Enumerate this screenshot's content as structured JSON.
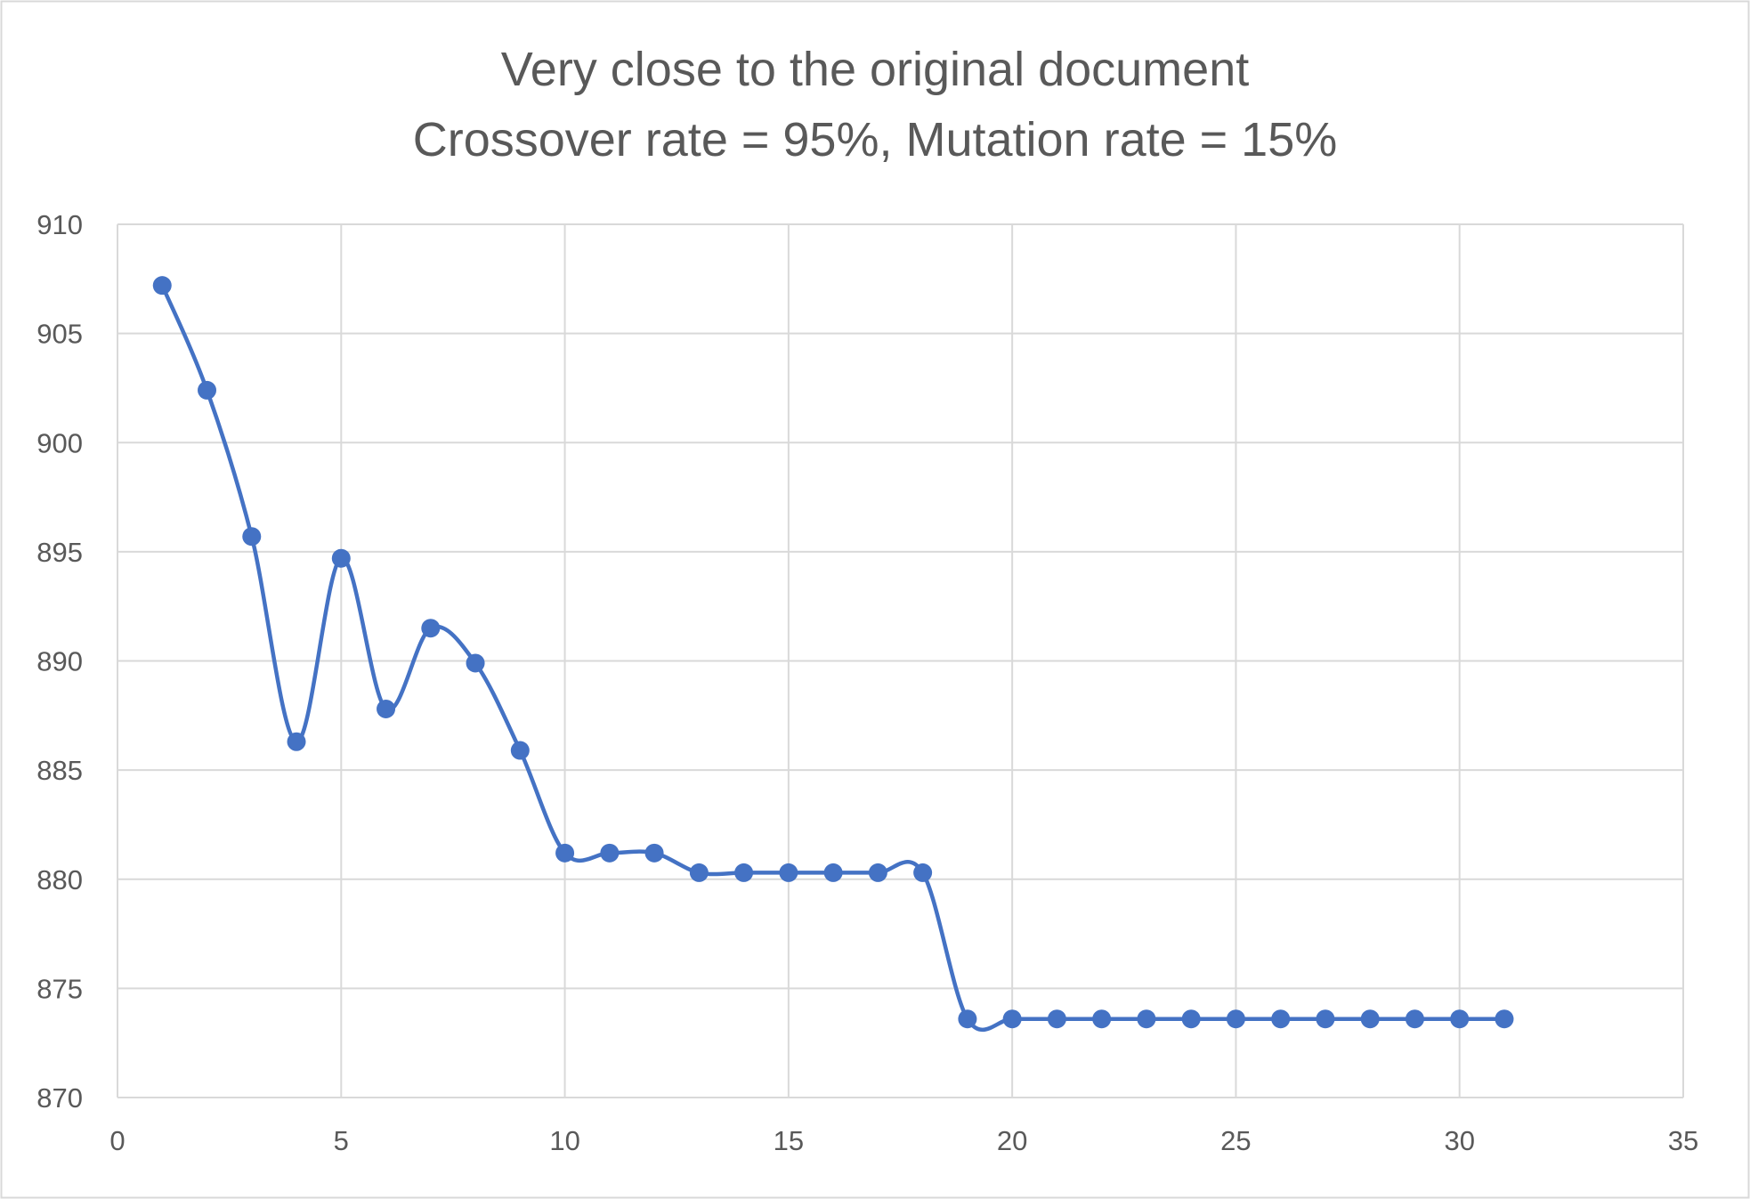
{
  "chart_data": {
    "type": "line",
    "title": "Very close to the original document",
    "subtitle": "Crossover rate = 95%, Mutation rate = 15%",
    "xlim": [
      0,
      35
    ],
    "ylim": [
      870,
      910
    ],
    "x_ticks": [
      0,
      5,
      10,
      15,
      20,
      25,
      30,
      35
    ],
    "y_ticks": [
      870,
      875,
      880,
      885,
      890,
      895,
      900,
      905,
      910
    ],
    "grid": true,
    "smoothed": true,
    "markers": true,
    "series_color": "#4472C4",
    "grid_color": "#D9D9D9",
    "series": [
      {
        "x": [
          1,
          2,
          3,
          4,
          5,
          6,
          7,
          8,
          9,
          10,
          11,
          12,
          13,
          14,
          15,
          16,
          17,
          18,
          19,
          20,
          21,
          22,
          23,
          24,
          25,
          26,
          27,
          28,
          29,
          30,
          31
        ],
        "values": [
          907.2,
          902.4,
          895.7,
          886.3,
          894.7,
          887.8,
          891.5,
          889.9,
          885.9,
          881.2,
          881.2,
          881.2,
          880.3,
          880.3,
          880.3,
          880.3,
          880.3,
          880.3,
          873.6,
          873.6,
          873.6,
          873.6,
          873.6,
          873.6,
          873.6,
          873.6,
          873.6,
          873.6,
          873.6,
          873.6,
          873.6
        ]
      }
    ]
  }
}
